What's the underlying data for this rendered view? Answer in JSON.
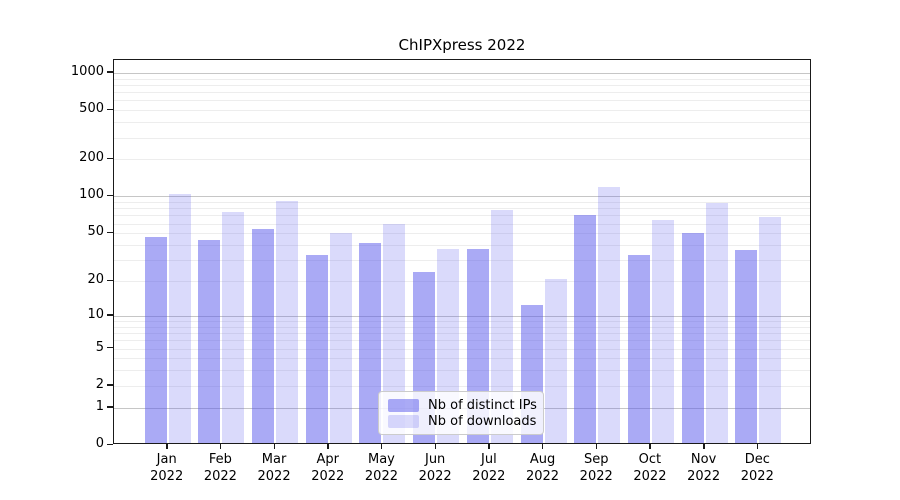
{
  "chart_data": {
    "type": "bar",
    "title": "ChIPXpress 2022",
    "categories": [
      "Jan",
      "Feb",
      "Mar",
      "Apr",
      "May",
      "Jun",
      "Jul",
      "Aug",
      "Sep",
      "Oct",
      "Nov",
      "Dec"
    ],
    "category_year": "2022",
    "series": [
      {
        "name": "Nb of distinct IPs",
        "color": "rgba(85,85,235,0.5)",
        "values": [
          45,
          42,
          52,
          32,
          40,
          23,
          36,
          12,
          68,
          32,
          48,
          35
        ]
      },
      {
        "name": "Nb of downloads",
        "color": "rgba(85,85,235,0.22)",
        "values": [
          100,
          72,
          88,
          48,
          57,
          36,
          75,
          20,
          114,
          62,
          85,
          65
        ]
      }
    ],
    "xlabel": "",
    "ylabel": "",
    "yscale": "log1p",
    "yticks": [
      0,
      1,
      2,
      5,
      10,
      20,
      50,
      100,
      200,
      500,
      1000
    ],
    "ylim": [
      0,
      1270
    ],
    "grid": true,
    "legend_position": "lower center"
  },
  "colors": {
    "major_grid": "#c6c6c6",
    "minor_grid": "#ededed",
    "spine": "#1a1a1a",
    "text": "#000000",
    "legend_border": "#cccccc",
    "background": "#ffffff"
  }
}
